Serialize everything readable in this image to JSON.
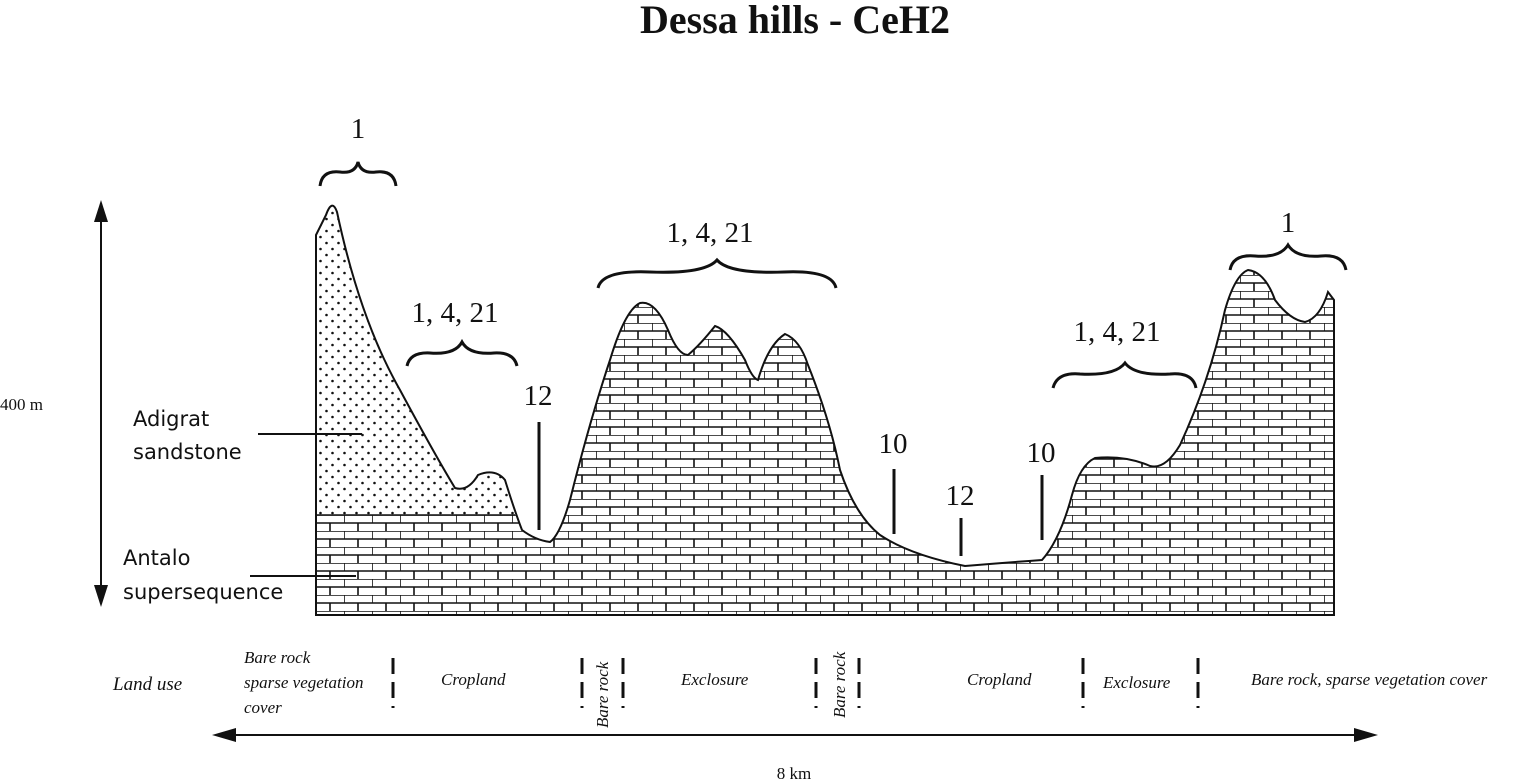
{
  "title": "Dessa hills - CeH2",
  "vertical_scale": "400 m",
  "horizontal_scale": "8 km",
  "rock_units": {
    "sandstone_line1": "Adigrat",
    "sandstone_line2": "sandstone",
    "limestone_line1": "Antalo",
    "limestone_line2": "supersequence"
  },
  "soil_labels": {
    "left_peak": "1",
    "left_slope": "1, 4, 21",
    "left_valley": "12",
    "central_hill": "1, 4, 21",
    "valley_left": "10",
    "valley_center": "12",
    "valley_right": "10",
    "right_slope": "1, 4, 21",
    "right_peak": "1"
  },
  "land_use": {
    "heading": "Land use",
    "bare_rock_line1": "Bare rock",
    "bare_rock_line2": "sparse vegetation",
    "bare_rock_line3": "cover",
    "cropland_1": "Cropland",
    "bare_rock_2": "Bare rock",
    "exclosure_1": "Exclosure",
    "bare_rock_3": "Bare rock",
    "cropland_2": "Cropland",
    "exclosure_2": "Exclosure",
    "bare_rock_sparse": "Bare rock, sparse vegetation cover"
  }
}
